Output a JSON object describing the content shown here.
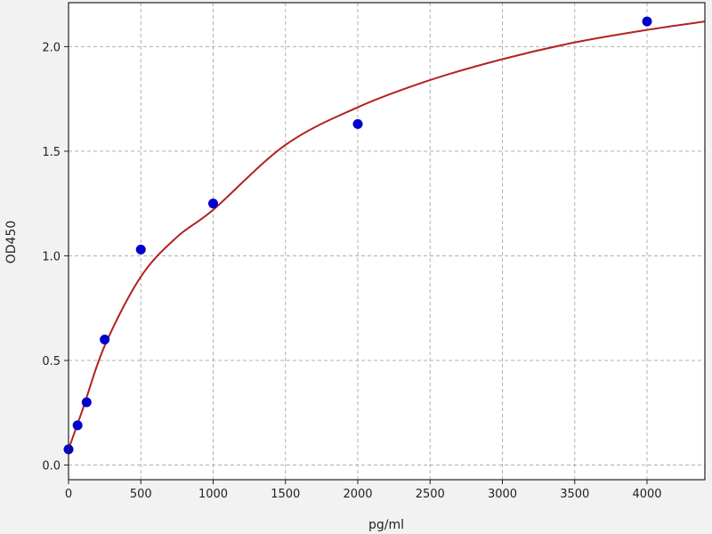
{
  "chart_data": {
    "type": "scatter",
    "title": "",
    "xlabel": "pg/ml",
    "ylabel": "OD450",
    "xlim": [
      0,
      4400
    ],
    "ylim": [
      -0.07,
      2.21
    ],
    "grid": true,
    "xticks": [
      0,
      500,
      1000,
      1500,
      2000,
      2500,
      3000,
      3500,
      4000
    ],
    "yticks": [
      "0.0",
      "0.5",
      "1.0",
      "1.5",
      "2.0"
    ],
    "series": [
      {
        "kind": "points",
        "color": "#0000cc",
        "x": [
          0,
          62.5,
          125,
          250,
          500,
          1000,
          2000,
          4000
        ],
        "y": [
          0.075,
          0.19,
          0.3,
          0.6,
          1.03,
          1.25,
          1.63,
          2.12
        ]
      },
      {
        "kind": "fit-curve",
        "color": "#b22222",
        "x": [
          0,
          100,
          250,
          500,
          750,
          1000,
          1500,
          2000,
          2500,
          3000,
          3500,
          4000,
          4400
        ],
        "y": [
          0.075,
          0.27,
          0.57,
          0.9,
          1.09,
          1.22,
          1.53,
          1.71,
          1.84,
          1.94,
          2.02,
          2.08,
          2.12
        ]
      }
    ]
  }
}
